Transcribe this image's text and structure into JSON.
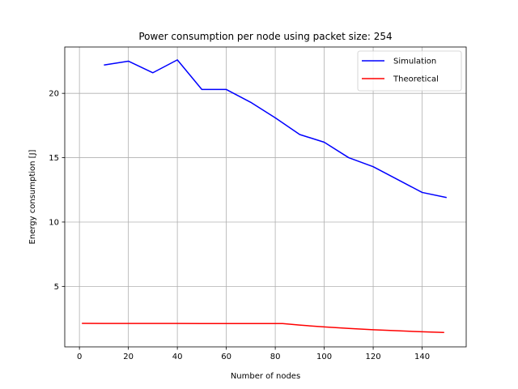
{
  "chart_data": {
    "type": "line",
    "title": "Power consumption per node using packet size: 254",
    "xlabel": "Number of nodes",
    "ylabel": "Energy consumption [J]",
    "xlim": [
      -6,
      158
    ],
    "ylim": [
      0.3,
      23.6
    ],
    "xticks": [
      0,
      20,
      40,
      60,
      80,
      100,
      120,
      140
    ],
    "yticks": [
      5,
      10,
      15,
      20
    ],
    "grid": true,
    "legend_position": "upper-right",
    "series": [
      {
        "name": "Simulation",
        "color": "#0000ff",
        "x": [
          10,
          20,
          30,
          40,
          50,
          60,
          70,
          80,
          90,
          100,
          110,
          120,
          130,
          140,
          150
        ],
        "y": [
          22.2,
          22.5,
          21.6,
          22.6,
          20.3,
          20.3,
          19.3,
          18.1,
          16.8,
          16.2,
          15.0,
          14.3,
          13.3,
          12.3,
          11.9
        ]
      },
      {
        "name": "Theoretical",
        "color": "#ff0000",
        "x": [
          1,
          10,
          20,
          30,
          40,
          50,
          60,
          70,
          83,
          90,
          100,
          110,
          120,
          130,
          140,
          149
        ],
        "y": [
          2.13,
          2.12,
          2.12,
          2.12,
          2.12,
          2.11,
          2.11,
          2.11,
          2.11,
          1.99,
          1.85,
          1.73,
          1.63,
          1.55,
          1.47,
          1.42
        ]
      }
    ]
  }
}
